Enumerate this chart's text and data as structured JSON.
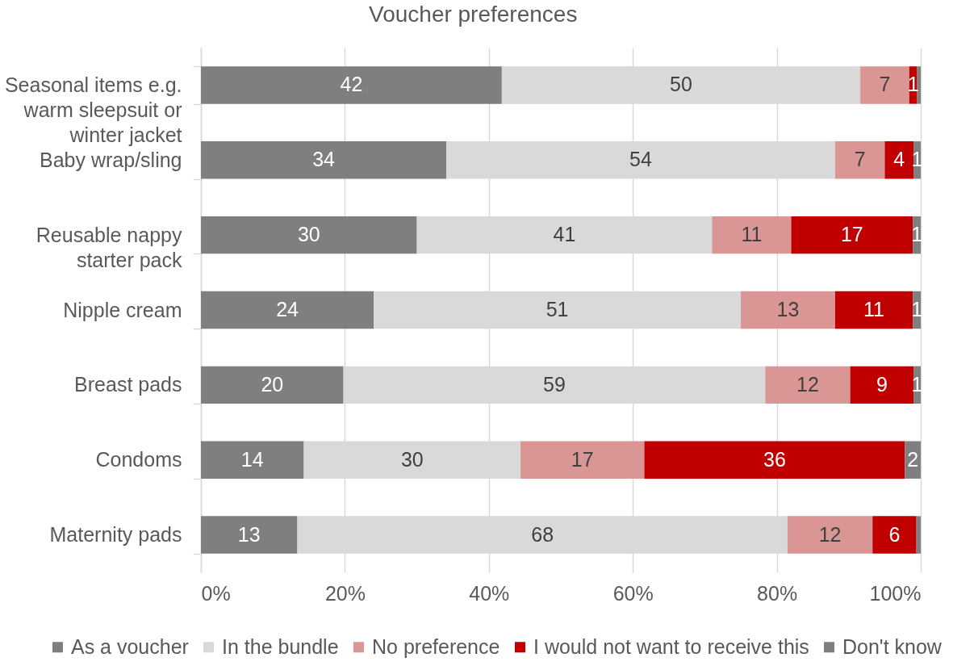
{
  "chart_data": {
    "type": "bar",
    "orientation": "horizontal",
    "stacked": true,
    "title": "Voucher preferences",
    "categories": [
      "Seasonal items e.g. warm sleepsuit or winter jacket",
      "Baby wrap/sling",
      "Reusable nappy starter pack",
      "Nipple cream",
      "Breast pads",
      "Condoms",
      "Maternity pads"
    ],
    "series": [
      {
        "name": "As a voucher",
        "color": "#7f7f7f",
        "values": [
          41.8,
          34.1,
          30.0,
          24.0,
          19.8,
          14.3,
          13.4
        ],
        "value_labels": [
          "42",
          "34",
          "30",
          "24",
          "20",
          "14",
          "13"
        ]
      },
      {
        "name": "In the bundle",
        "color": "#d9d9d9",
        "values": [
          49.8,
          54.0,
          41.0,
          51.0,
          58.6,
          30.1,
          68.1
        ],
        "value_labels": [
          "50",
          "54",
          "41",
          "51",
          "59",
          "30",
          "68"
        ]
      },
      {
        "name": "No preference",
        "color": "#da9694",
        "values": [
          6.8,
          6.9,
          11.0,
          13.1,
          11.8,
          17.2,
          11.8
        ],
        "value_labels": [
          "7",
          "7",
          "11",
          "13",
          "12",
          "17",
          "12"
        ]
      },
      {
        "name": "I would not want to receive this",
        "color": "#c00000",
        "values": [
          1.1,
          4.0,
          16.9,
          10.8,
          8.8,
          36.2,
          6.1
        ],
        "value_labels": [
          "1",
          "4",
          "17",
          "11",
          "9",
          "36",
          "6"
        ]
      },
      {
        "name": "Don't know",
        "color": "#7f7f7f",
        "values": [
          0.5,
          1.0,
          1.1,
          1.1,
          1.0,
          2.2,
          0.6
        ],
        "value_labels": [
          null,
          "1",
          "1",
          "1",
          "1",
          "2",
          null
        ]
      }
    ],
    "xlim": [
      0,
      100
    ],
    "xticks": [
      {
        "value": 0,
        "label": "0%"
      },
      {
        "value": 20,
        "label": "20%"
      },
      {
        "value": 40,
        "label": "40%"
      },
      {
        "value": 60,
        "label": "60%"
      },
      {
        "value": 80,
        "label": "80%"
      },
      {
        "value": 100,
        "label": "100%"
      }
    ],
    "grid": "x",
    "legend": "bottom"
  }
}
